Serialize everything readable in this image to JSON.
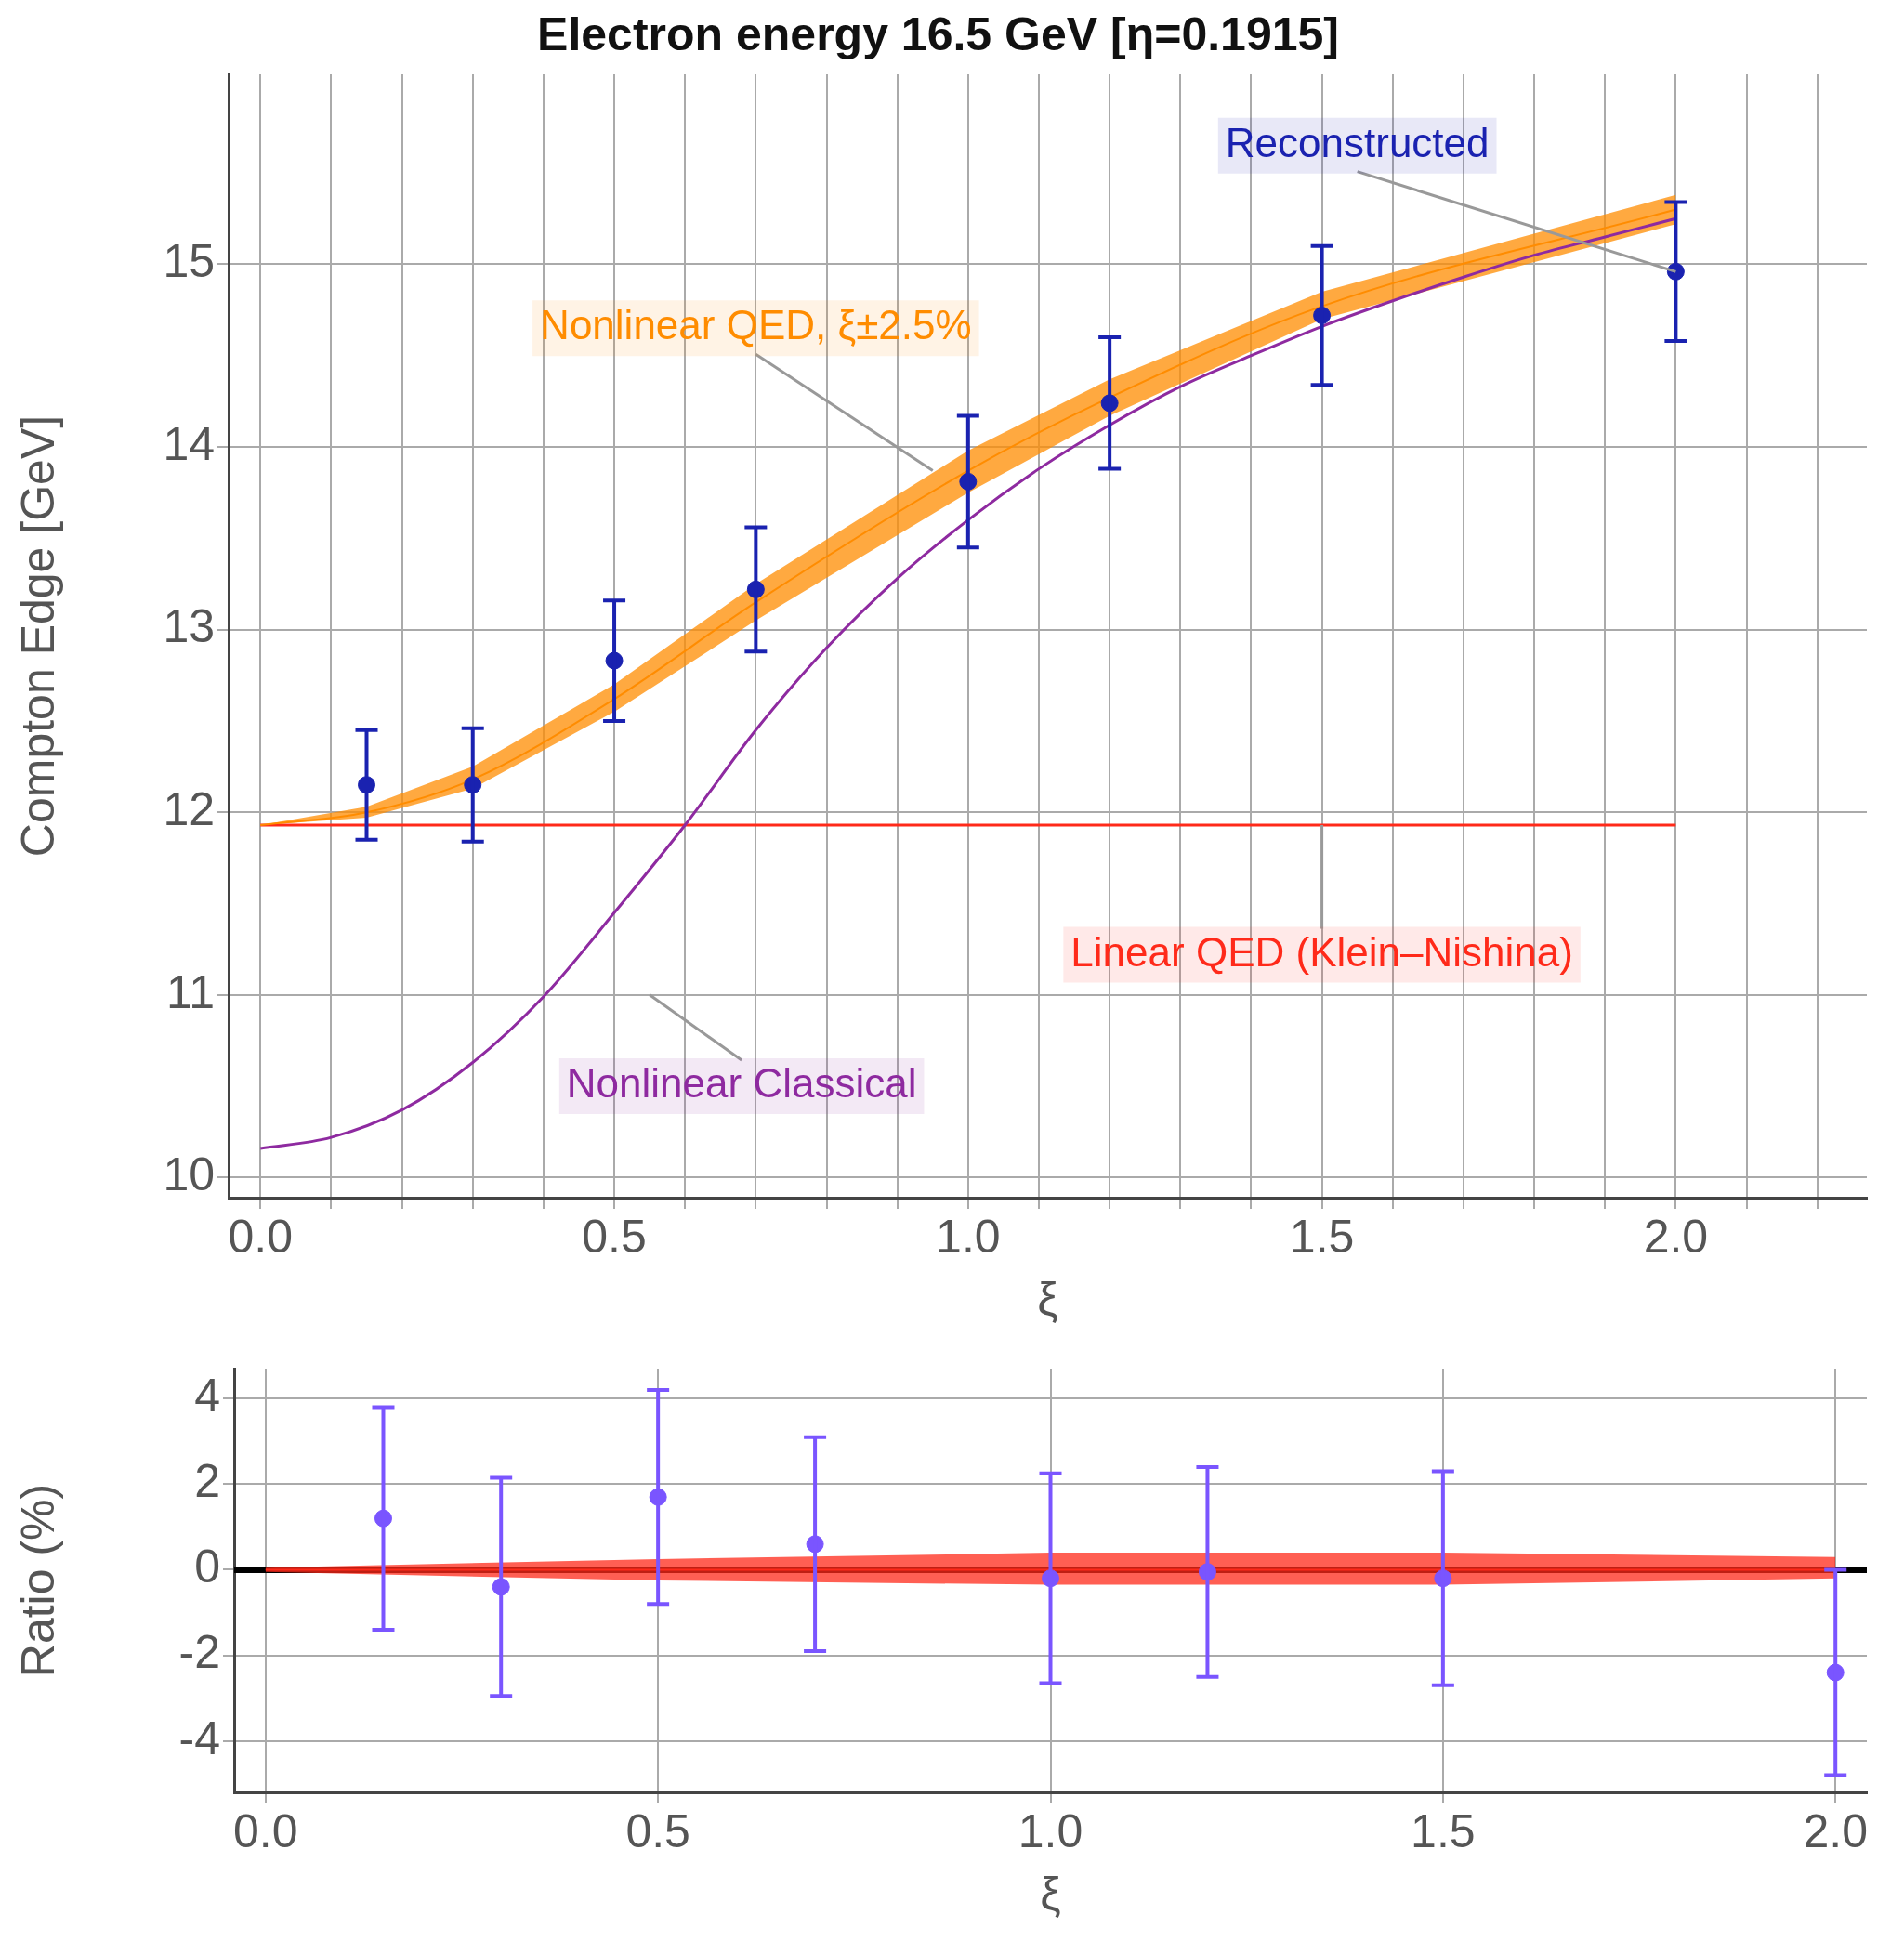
{
  "chart_data": [
    {
      "type": "scatter",
      "title": "Electron energy 16.5 GeV [η=0.1915]",
      "xlabel": "ξ",
      "ylabel": "Compton Edge [GeV]",
      "xlim": [
        -0.045,
        2.27
      ],
      "ylim": [
        9.89,
        16.04
      ],
      "xticks": [
        {
          "value": 0,
          "label": "0.0"
        },
        {
          "value": 0.1,
          "label": null
        },
        {
          "value": 0.2,
          "label": null
        },
        {
          "value": 0.3,
          "label": null
        },
        {
          "value": 0.4,
          "label": null
        },
        {
          "value": 0.5,
          "label": "0.5"
        },
        {
          "value": 0.6,
          "label": null
        },
        {
          "value": 0.7,
          "label": null
        },
        {
          "value": 0.8,
          "label": null
        },
        {
          "value": 0.9,
          "label": null
        },
        {
          "value": 1,
          "label": "1.0"
        },
        {
          "value": 1.1,
          "label": null
        },
        {
          "value": 1.2,
          "label": null
        },
        {
          "value": 1.3,
          "label": null
        },
        {
          "value": 1.4,
          "label": null
        },
        {
          "value": 1.5,
          "label": "1.5"
        },
        {
          "value": 1.6,
          "label": null
        },
        {
          "value": 1.7,
          "label": null
        },
        {
          "value": 1.8,
          "label": null
        },
        {
          "value": 1.9,
          "label": null
        },
        {
          "value": 2,
          "label": "2.0"
        },
        {
          "value": 2.1,
          "label": null
        },
        {
          "value": 2.2,
          "label": null
        }
      ],
      "yticks": [
        10,
        11,
        12,
        13,
        14,
        15
      ],
      "grid": true,
      "legend": false,
      "series": [
        {
          "name": "Nonlinear QED, ξ±2.5%",
          "type": "line",
          "color": "#ff8c00",
          "x": [
            0,
            0.15,
            0.3,
            0.5,
            0.7,
            1.0,
            1.2,
            1.5,
            2.0
          ],
          "values": [
            11.93,
            12.0,
            12.18,
            12.62,
            13.15,
            13.87,
            14.27,
            14.77,
            15.3
          ],
          "lower": [
            11.93,
            11.97,
            12.13,
            12.55,
            13.05,
            13.75,
            14.17,
            14.7,
            15.22
          ],
          "upper": [
            11.93,
            12.03,
            12.25,
            12.7,
            13.25,
            13.98,
            14.37,
            14.85,
            15.38
          ]
        },
        {
          "name": "Nonlinear Classical",
          "type": "line",
          "color": "#8e2aa0",
          "x": [
            0,
            0.1,
            0.2,
            0.3,
            0.4,
            0.5,
            0.6,
            0.7,
            0.8,
            0.9,
            1.0,
            1.1,
            1.2,
            1.3,
            1.4,
            1.5,
            1.6,
            1.7,
            1.8,
            1.9,
            2.0
          ],
          "values": [
            10.16,
            10.22,
            10.37,
            10.63,
            10.99,
            11.45,
            11.93,
            12.45,
            12.9,
            13.28,
            13.6,
            13.88,
            14.12,
            14.33,
            14.5,
            14.66,
            14.8,
            14.93,
            15.05,
            15.15,
            15.25
          ]
        },
        {
          "name": "Linear QED (Klein–Nishina)",
          "type": "line",
          "color": "#ff2a1a",
          "x": [
            0,
            2.0
          ],
          "values": [
            11.93,
            11.93
          ]
        },
        {
          "name": "Reconstructed",
          "type": "scatter",
          "marker": "circle",
          "color": "#1a22b0",
          "x": [
            0.15,
            0.3,
            0.5,
            0.7,
            1.0,
            1.2,
            1.5,
            2.0
          ],
          "values": [
            12.15,
            12.15,
            12.83,
            13.22,
            13.81,
            14.24,
            14.72,
            14.96
          ],
          "errors": [
            0.3,
            0.31,
            0.33,
            0.34,
            0.36,
            0.36,
            0.38,
            0.38
          ]
        }
      ]
    },
    {
      "type": "scatter",
      "xlabel": "ξ",
      "ylabel": "Ratio (%)",
      "xlim": [
        -0.04,
        2.04
      ],
      "ylim": [
        -5.2,
        4.7
      ],
      "xticks": [
        {
          "value": 0,
          "label": "0.0"
        },
        0.5,
        {
          "value": 1,
          "label": "1.0"
        },
        1.5,
        {
          "value": 2,
          "label": "2.0"
        }
      ],
      "yticks": [
        -4,
        -2,
        0,
        2,
        4
      ],
      "grid": true,
      "legend": false,
      "ref_lines": [
        {
          "axis": "y",
          "value": 0,
          "color": "#000000"
        }
      ],
      "series": [
        {
          "type": "line",
          "color": "#ff2a1a",
          "x": [
            0,
            0.5,
            1.0,
            1.5,
            2.0
          ],
          "values": [
            0,
            0,
            0,
            0,
            0
          ],
          "lower": [
            -0.05,
            -0.25,
            -0.35,
            -0.35,
            -0.2
          ],
          "upper": [
            0.05,
            0.25,
            0.4,
            0.4,
            0.3
          ]
        },
        {
          "type": "scatter",
          "marker": "circle",
          "color": "#7a55ff",
          "x": [
            0.15,
            0.3,
            0.5,
            0.7,
            1.0,
            1.2,
            1.5,
            2.0
          ],
          "values": [
            1.2,
            -0.4,
            1.7,
            0.6,
            -0.2,
            -0.05,
            -0.2,
            -2.4
          ],
          "errors": [
            2.6,
            2.55,
            2.5,
            2.5,
            2.45,
            2.45,
            2.5,
            2.4
          ]
        }
      ]
    }
  ]
}
